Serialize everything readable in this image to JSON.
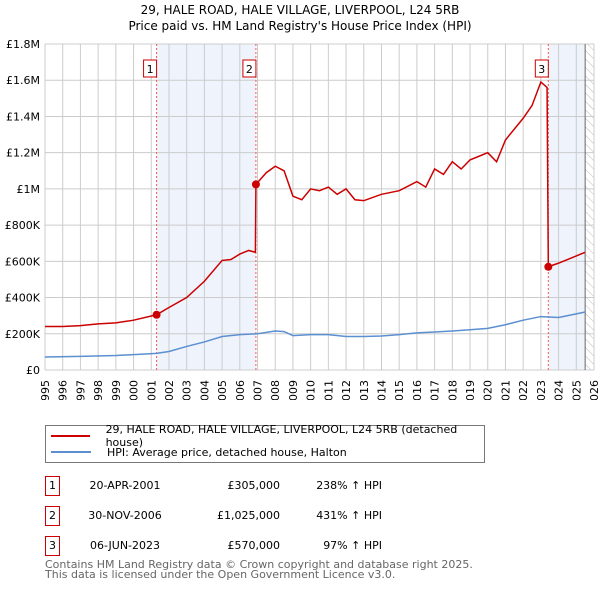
{
  "chart_data": {
    "type": "line",
    "title": "29, HALE ROAD, HALE VILLAGE, LIVERPOOL, L24 5RB",
    "subtitle": "Price paid vs. HM Land Registry's House Price Index (HPI)",
    "xlim": [
      1995,
      2026
    ],
    "ylim": [
      0,
      1800000
    ],
    "x_ticks": [
      "1995",
      "1996",
      "1997",
      "1998",
      "1999",
      "2000",
      "2001",
      "2002",
      "2003",
      "2004",
      "2005",
      "2006",
      "2007",
      "2008",
      "2009",
      "2010",
      "2011",
      "2012",
      "2013",
      "2014",
      "2015",
      "2016",
      "2017",
      "2018",
      "2019",
      "2020",
      "2021",
      "2022",
      "2023",
      "2024",
      "2025",
      "2026"
    ],
    "y_ticks": [
      {
        "v": 0,
        "l": "£0"
      },
      {
        "v": 200000,
        "l": "£200K"
      },
      {
        "v": 400000,
        "l": "£400K"
      },
      {
        "v": 600000,
        "l": "£600K"
      },
      {
        "v": 800000,
        "l": "£800K"
      },
      {
        "v": 1000000,
        "l": "£1M"
      },
      {
        "v": 1200000,
        "l": "£1.2M"
      },
      {
        "v": 1400000,
        "l": "£1.4M"
      },
      {
        "v": 1600000,
        "l": "£1.6M"
      },
      {
        "v": 1800000,
        "l": "£1.8M"
      }
    ],
    "grid": true,
    "series": [
      {
        "name": "29, HALE ROAD, HALE VILLAGE, LIVERPOOL, L24 5RB (detached house)",
        "color": "#cc0000",
        "x": [
          1995,
          1996,
          1997,
          1998,
          1999,
          2000,
          2001.3,
          2002,
          2003,
          2004,
          2005,
          2005.5,
          2006,
          2006.5,
          2006.88,
          2006.91,
          2007.5,
          2008,
          2008.5,
          2009,
          2009.5,
          2010,
          2010.5,
          2011,
          2011.5,
          2012,
          2012.5,
          2013,
          2014,
          2015,
          2016,
          2016.5,
          2017,
          2017.5,
          2018,
          2018.5,
          2019,
          2020,
          2020.5,
          2021,
          2022,
          2022.5,
          2023,
          2023.35,
          2023.42,
          2024,
          2024.5,
          2025,
          2025.5
        ],
        "y": [
          240000,
          240000,
          245000,
          255000,
          260000,
          275000,
          305000,
          345000,
          400000,
          490000,
          605000,
          610000,
          640000,
          660000,
          650000,
          1025000,
          1090000,
          1125000,
          1100000,
          960000,
          940000,
          1000000,
          990000,
          1010000,
          970000,
          1000000,
          940000,
          935000,
          970000,
          990000,
          1040000,
          1010000,
          1110000,
          1080000,
          1150000,
          1110000,
          1160000,
          1200000,
          1150000,
          1270000,
          1390000,
          1460000,
          1590000,
          1560000,
          570000,
          590000,
          610000,
          630000,
          650000
        ]
      },
      {
        "name": "HPI: Average price, detached house, Halton",
        "color": "#5b8fd0",
        "x": [
          1995,
          1997,
          1999,
          2000,
          2001.3,
          2002,
          2003,
          2004,
          2005,
          2006,
          2007,
          2008,
          2008.5,
          2009,
          2010,
          2011,
          2012,
          2013,
          2014,
          2015,
          2016,
          2017,
          2018,
          2019,
          2020,
          2021,
          2022,
          2023,
          2024,
          2025,
          2025.5
        ],
        "y": [
          72000,
          75000,
          80000,
          85000,
          92000,
          102000,
          130000,
          155000,
          185000,
          195000,
          200000,
          215000,
          212000,
          190000,
          195000,
          195000,
          185000,
          185000,
          188000,
          195000,
          205000,
          210000,
          215000,
          222000,
          230000,
          250000,
          275000,
          295000,
          290000,
          310000,
          320000
        ]
      }
    ],
    "sales": [
      {
        "id": "1",
        "x": 2001.3,
        "y": 305000,
        "date": "20-APR-2001",
        "price": "£305,000",
        "hpi": "238% ↑ HPI"
      },
      {
        "id": "2",
        "x": 2006.91,
        "y": 1025000,
        "date": "30-NOV-2006",
        "price": "£1,025,000",
        "hpi": "431% ↑ HPI"
      },
      {
        "id": "3",
        "x": 2023.42,
        "y": 570000,
        "date": "06-JUN-2023",
        "price": "£570,000",
        "hpi": "97% ↑ HPI"
      }
    ],
    "data_end": 2025.5
  },
  "footer": [
    "Contains HM Land Registry data © Crown copyright and database right 2025.",
    "This data is licensed under the Open Government Licence v3.0."
  ]
}
